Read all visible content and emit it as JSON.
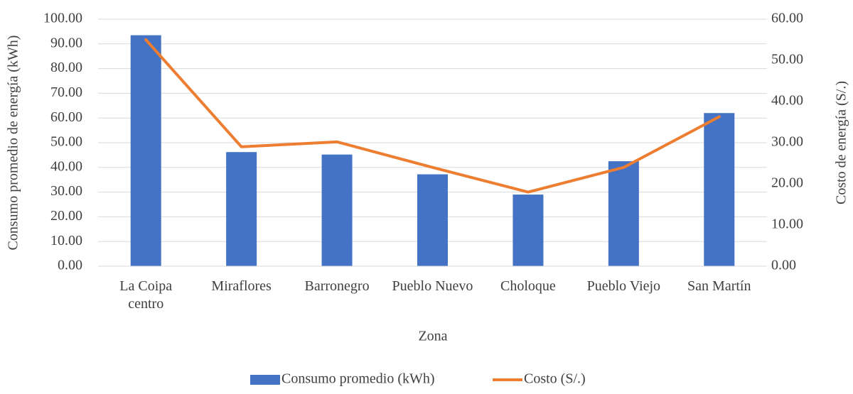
{
  "chart_data": {
    "type": "bar",
    "categories": [
      "La Coipa centro",
      "Miraflores",
      "Barronegro",
      "Pueblo Nuevo",
      "Choloque",
      "Pueblo Viejo",
      "San Martín"
    ],
    "series": [
      {
        "name": "Consumo promedio (kWh)",
        "type": "bar",
        "color": "#4472c4",
        "values": [
          93.5,
          46.2,
          45.2,
          37.2,
          29.0,
          42.5,
          62.0
        ]
      },
      {
        "name": "Costo (S/.)",
        "type": "line",
        "axis": "y2",
        "color": "#ed7d31",
        "values": [
          55.0,
          29.0,
          30.2,
          24.0,
          18.0,
          24.0,
          36.3
        ]
      }
    ],
    "x_label": "Zona",
    "y_label": "Consumo promedio de energía (kWh)",
    "y2_label": "Costo de energía (S/.)",
    "ylim": [
      0,
      100
    ],
    "yticks": [
      {
        "value": 0,
        "label": "0.00"
      },
      {
        "value": 10,
        "label": "10.00"
      },
      {
        "value": 20,
        "label": "20.00"
      },
      {
        "value": 30,
        "label": "30.00"
      },
      {
        "value": 40,
        "label": "40.00"
      },
      {
        "value": 50,
        "label": "50.00"
      },
      {
        "value": 60,
        "label": "60.00"
      },
      {
        "value": 70,
        "label": "70.00"
      },
      {
        "value": 80,
        "label": "80.00"
      },
      {
        "value": 90,
        "label": "90.00"
      },
      {
        "value": 100,
        "label": "100.00"
      }
    ],
    "y2lim": [
      0,
      60
    ],
    "y2ticks": [
      {
        "value": 0,
        "label": "0.00"
      },
      {
        "value": 10,
        "label": "10.00"
      },
      {
        "value": 20,
        "label": "20.00"
      },
      {
        "value": 30,
        "label": "30.00"
      },
      {
        "value": 40,
        "label": "40.00"
      },
      {
        "value": 50,
        "label": "50.00"
      },
      {
        "value": 60,
        "label": "60.00"
      }
    ],
    "grid": true,
    "legend": "bottom"
  }
}
